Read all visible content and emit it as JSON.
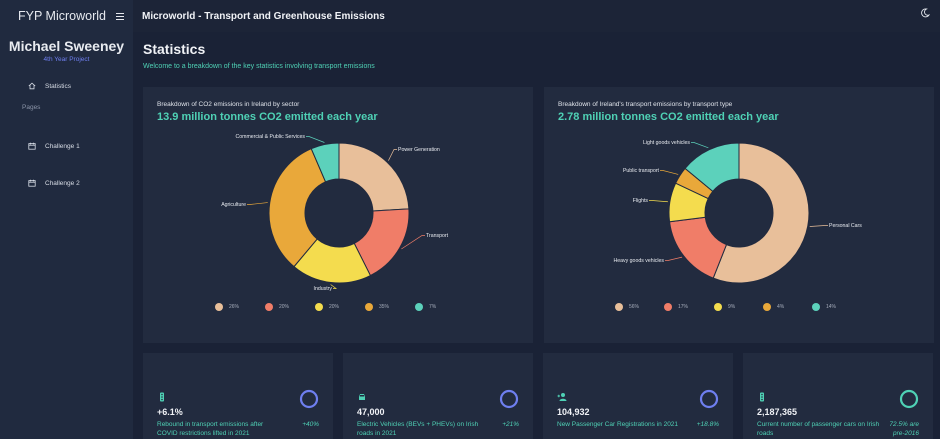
{
  "sidebar": {
    "brand": "FYP Microworld",
    "user_name": "Michael Sweeney",
    "user_role": "4th Year Project",
    "home_item": "Statistics",
    "section_heading": "Pages",
    "items": [
      {
        "label": "Challenge 1"
      },
      {
        "label": "Challenge 2"
      }
    ]
  },
  "header": {
    "title": "Microworld - Transport and Greenhouse Emissions"
  },
  "main": {
    "title": "Statistics",
    "subtitle": "Welcome to a breakdown of the key statistics involving transport emissions"
  },
  "colors": {
    "accent": "#4fd1b5",
    "peach": "#e8bf9a",
    "red": "#f07d68",
    "yellow": "#f4dc4e",
    "orange": "#e9a83a",
    "teal": "#5cd1bb",
    "ring": "#6f7ff0"
  },
  "chart_data": [
    {
      "type": "pie",
      "title": "Breakdown of CO2 emissions in Ireland by sector",
      "headline": "13.9 million tonnes CO2 emitted each year",
      "categories": [
        "Power Generation",
        "Transport",
        "Industry",
        "Agriculture",
        "Commercial & Public Services"
      ],
      "values": [
        26,
        20,
        20,
        35,
        7
      ],
      "legend_labels": [
        "26%",
        "20%",
        "20%",
        "35%",
        "7%"
      ],
      "legend": "bottom"
    },
    {
      "type": "pie",
      "title": "Breakdown of Ireland's transport emissions by transport type",
      "headline": "2.78 million tonnes CO2 emitted each year",
      "categories": [
        "Personal Cars",
        "Heavy goods vehicles",
        "Flights",
        "Public transport",
        "Light goods vehicles"
      ],
      "values": [
        56,
        17,
        9,
        4,
        14
      ],
      "legend_labels": [
        "56%",
        "17%",
        "9%",
        "4%",
        "14%"
      ],
      "legend": "bottom"
    }
  ],
  "stats": [
    {
      "icon": "traffic-light-icon",
      "value": "+6.1%",
      "desc": "Rebound in transport emissions after COVID restrictions lifted in 2021",
      "delta": "+40%"
    },
    {
      "icon": "car-icon",
      "value": "47,000",
      "desc": "Electric Vehicles (BEVs + PHEVs) on Irish roads in 2021",
      "delta": "+21%"
    },
    {
      "icon": "person-add-icon",
      "value": "104,932",
      "desc": "New Passenger Car Registrations in 2021",
      "delta": "+18.8%"
    },
    {
      "icon": "traffic-light-icon",
      "value": "2,187,365",
      "desc": "Current number of passenger cars on Irish roads",
      "delta": "72.5% are pre-2016"
    }
  ]
}
